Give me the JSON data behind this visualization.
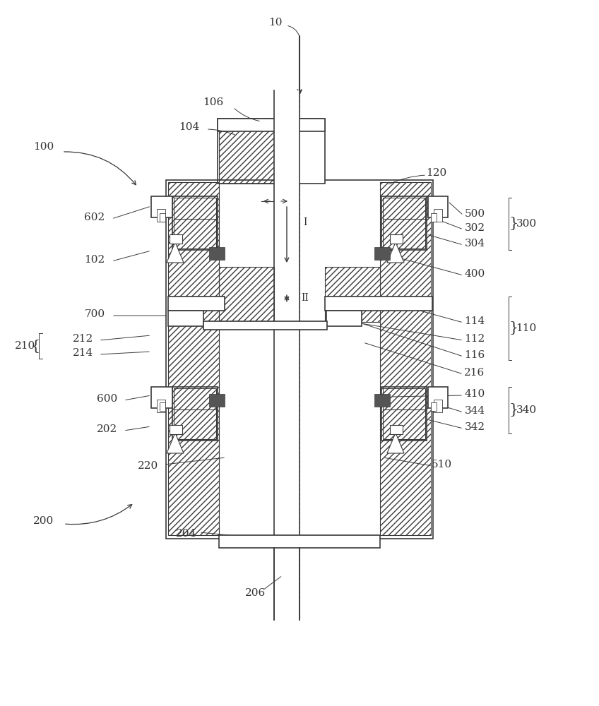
{
  "bg_color": "#ffffff",
  "line_color": "#3a3a3a",
  "dark_square_color": "#555555",
  "label_color": "#333333"
}
